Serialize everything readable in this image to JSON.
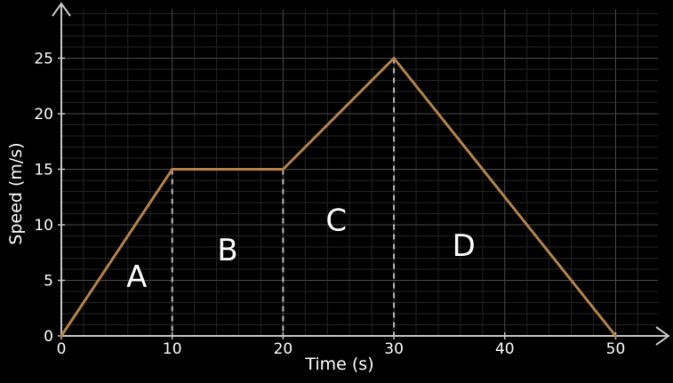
{
  "chart_data": {
    "type": "line",
    "title": "",
    "xlabel": "Time (s)",
    "ylabel": "Speed (m/s)",
    "xlim": [
      0,
      54
    ],
    "ylim": [
      0,
      28
    ],
    "grid": true,
    "x_ticks": [
      0,
      10,
      20,
      30,
      40,
      50
    ],
    "y_ticks": [
      0,
      5,
      10,
      15,
      20,
      25
    ],
    "series": [
      {
        "x": [
          0,
          10,
          20,
          30,
          50
        ],
        "y": [
          0,
          15,
          15,
          25,
          0
        ],
        "color": "#b5834a"
      }
    ],
    "drop_lines": [
      {
        "x": 10,
        "y": 15
      },
      {
        "x": 20,
        "y": 15
      },
      {
        "x": 30,
        "y": 25
      }
    ],
    "region_labels": [
      {
        "text": "A",
        "x": 6.8,
        "y": 4.4
      },
      {
        "text": "B",
        "x": 15.0,
        "y": 6.8
      },
      {
        "text": "C",
        "x": 24.8,
        "y": 9.5
      },
      {
        "text": "D",
        "x": 36.3,
        "y": 7.2
      }
    ],
    "colors": {
      "background": "#000000",
      "grid_major": "#4a4a4a",
      "grid_minor": "#242424",
      "axes": "#c8c8c8",
      "drop_line": "#bdbdbd"
    }
  }
}
